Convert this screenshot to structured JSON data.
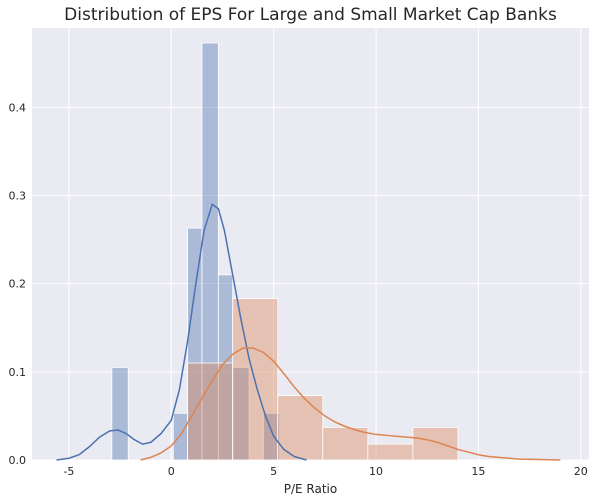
{
  "chart_data": {
    "type": "histogram",
    "title": "Distribution of EPS For Large and Small Market Cap Banks",
    "xlabel": "P/E Ratio",
    "ylabel": "",
    "xlim": [
      -6.8,
      20.4
    ],
    "ylim": [
      0,
      0.49
    ],
    "xticks": [
      -5,
      0,
      5,
      10,
      15,
      20
    ],
    "yticks": [
      0.0,
      0.1,
      0.2,
      0.3,
      0.4
    ],
    "ytick_labels": [
      "0.0",
      "0.1",
      "0.2",
      "0.3",
      "0.4"
    ],
    "grid": true,
    "background": "#eaeaf2",
    "series": [
      {
        "color": "#4c72b0",
        "bars": [
          {
            "x0": -2.9,
            "x1": -2.1,
            "y": 0.105
          },
          {
            "x0": 0.1,
            "x1": 0.8,
            "y": 0.053
          },
          {
            "x0": 0.8,
            "x1": 1.5,
            "y": 0.263
          },
          {
            "x0": 1.5,
            "x1": 2.3,
            "y": 0.473
          },
          {
            "x0": 2.3,
            "x1": 3.0,
            "y": 0.21
          },
          {
            "x0": 3.0,
            "x1": 3.8,
            "y": 0.105
          },
          {
            "x0": 3.8,
            "x1": 4.5,
            "y": 0.0
          },
          {
            "x0": 4.5,
            "x1": 5.3,
            "y": 0.053
          }
        ],
        "kde": [
          [
            -5.6,
            0.0
          ],
          [
            -5.0,
            0.002
          ],
          [
            -4.5,
            0.006
          ],
          [
            -4.0,
            0.015
          ],
          [
            -3.5,
            0.026
          ],
          [
            -3.0,
            0.033
          ],
          [
            -2.6,
            0.034
          ],
          [
            -2.2,
            0.03
          ],
          [
            -1.8,
            0.023
          ],
          [
            -1.4,
            0.018
          ],
          [
            -1.0,
            0.02
          ],
          [
            -0.5,
            0.03
          ],
          [
            0.0,
            0.045
          ],
          [
            0.4,
            0.08
          ],
          [
            0.8,
            0.135
          ],
          [
            1.2,
            0.2
          ],
          [
            1.6,
            0.26
          ],
          [
            2.0,
            0.29
          ],
          [
            2.3,
            0.285
          ],
          [
            2.6,
            0.26
          ],
          [
            3.0,
            0.21
          ],
          [
            3.4,
            0.16
          ],
          [
            3.8,
            0.115
          ],
          [
            4.2,
            0.08
          ],
          [
            4.6,
            0.05
          ],
          [
            5.0,
            0.027
          ],
          [
            5.5,
            0.012
          ],
          [
            6.0,
            0.004
          ],
          [
            6.6,
            0.0
          ]
        ]
      },
      {
        "color": "#dd8452",
        "bars": [
          {
            "x0": 0.8,
            "x1": 3.0,
            "y": 0.11
          },
          {
            "x0": 3.0,
            "x1": 5.2,
            "y": 0.183
          },
          {
            "x0": 5.2,
            "x1": 7.4,
            "y": 0.073
          },
          {
            "x0": 7.4,
            "x1": 9.6,
            "y": 0.037
          },
          {
            "x0": 9.6,
            "x1": 11.8,
            "y": 0.018
          },
          {
            "x0": 11.8,
            "x1": 14.0,
            "y": 0.037
          }
        ],
        "kde": [
          [
            -1.5,
            0.0
          ],
          [
            -1.0,
            0.003
          ],
          [
            -0.5,
            0.008
          ],
          [
            0.0,
            0.016
          ],
          [
            0.5,
            0.03
          ],
          [
            1.0,
            0.05
          ],
          [
            1.5,
            0.07
          ],
          [
            2.0,
            0.09
          ],
          [
            2.5,
            0.108
          ],
          [
            3.0,
            0.12
          ],
          [
            3.5,
            0.127
          ],
          [
            4.0,
            0.127
          ],
          [
            4.5,
            0.122
          ],
          [
            5.0,
            0.112
          ],
          [
            5.5,
            0.098
          ],
          [
            6.0,
            0.083
          ],
          [
            6.5,
            0.07
          ],
          [
            7.0,
            0.059
          ],
          [
            7.5,
            0.05
          ],
          [
            8.0,
            0.043
          ],
          [
            8.5,
            0.038
          ],
          [
            9.0,
            0.034
          ],
          [
            9.5,
            0.031
          ],
          [
            10.0,
            0.029
          ],
          [
            10.5,
            0.028
          ],
          [
            11.0,
            0.027
          ],
          [
            11.5,
            0.026
          ],
          [
            12.0,
            0.025
          ],
          [
            12.5,
            0.023
          ],
          [
            13.0,
            0.02
          ],
          [
            13.5,
            0.016
          ],
          [
            14.0,
            0.012
          ],
          [
            14.5,
            0.009
          ],
          [
            15.0,
            0.006
          ],
          [
            15.5,
            0.004
          ],
          [
            16.0,
            0.003
          ],
          [
            17.0,
            0.001
          ],
          [
            18.0,
            0.0005
          ],
          [
            19.0,
            0.0
          ]
        ]
      }
    ]
  }
}
